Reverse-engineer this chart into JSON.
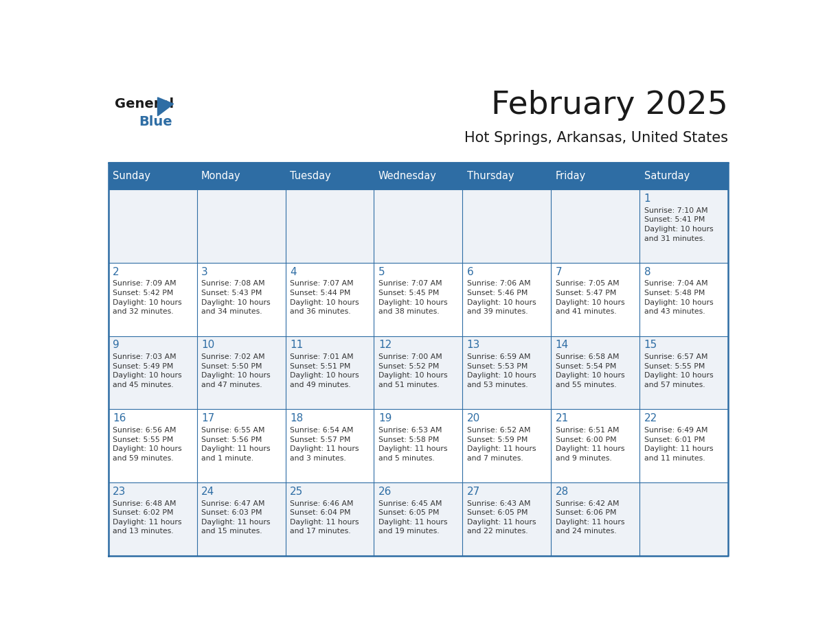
{
  "title": "February 2025",
  "subtitle": "Hot Springs, Arkansas, United States",
  "header_bg": "#2E6DA4",
  "header_text_color": "#FFFFFF",
  "day_number_color": "#2E6DA4",
  "info_text_color": "#333333",
  "border_color": "#2E6DA4",
  "days_of_week": [
    "Sunday",
    "Monday",
    "Tuesday",
    "Wednesday",
    "Thursday",
    "Friday",
    "Saturday"
  ],
  "calendar_data": [
    [
      null,
      null,
      null,
      null,
      null,
      null,
      {
        "day": 1,
        "sunrise": "7:10 AM",
        "sunset": "5:41 PM",
        "daylight_line1": "10 hours",
        "daylight_line2": "and 31 minutes."
      }
    ],
    [
      {
        "day": 2,
        "sunrise": "7:09 AM",
        "sunset": "5:42 PM",
        "daylight_line1": "10 hours",
        "daylight_line2": "and 32 minutes."
      },
      {
        "day": 3,
        "sunrise": "7:08 AM",
        "sunset": "5:43 PM",
        "daylight_line1": "10 hours",
        "daylight_line2": "and 34 minutes."
      },
      {
        "day": 4,
        "sunrise": "7:07 AM",
        "sunset": "5:44 PM",
        "daylight_line1": "10 hours",
        "daylight_line2": "and 36 minutes."
      },
      {
        "day": 5,
        "sunrise": "7:07 AM",
        "sunset": "5:45 PM",
        "daylight_line1": "10 hours",
        "daylight_line2": "and 38 minutes."
      },
      {
        "day": 6,
        "sunrise": "7:06 AM",
        "sunset": "5:46 PM",
        "daylight_line1": "10 hours",
        "daylight_line2": "and 39 minutes."
      },
      {
        "day": 7,
        "sunrise": "7:05 AM",
        "sunset": "5:47 PM",
        "daylight_line1": "10 hours",
        "daylight_line2": "and 41 minutes."
      },
      {
        "day": 8,
        "sunrise": "7:04 AM",
        "sunset": "5:48 PM",
        "daylight_line1": "10 hours",
        "daylight_line2": "and 43 minutes."
      }
    ],
    [
      {
        "day": 9,
        "sunrise": "7:03 AM",
        "sunset": "5:49 PM",
        "daylight_line1": "10 hours",
        "daylight_line2": "and 45 minutes."
      },
      {
        "day": 10,
        "sunrise": "7:02 AM",
        "sunset": "5:50 PM",
        "daylight_line1": "10 hours",
        "daylight_line2": "and 47 minutes."
      },
      {
        "day": 11,
        "sunrise": "7:01 AM",
        "sunset": "5:51 PM",
        "daylight_line1": "10 hours",
        "daylight_line2": "and 49 minutes."
      },
      {
        "day": 12,
        "sunrise": "7:00 AM",
        "sunset": "5:52 PM",
        "daylight_line1": "10 hours",
        "daylight_line2": "and 51 minutes."
      },
      {
        "day": 13,
        "sunrise": "6:59 AM",
        "sunset": "5:53 PM",
        "daylight_line1": "10 hours",
        "daylight_line2": "and 53 minutes."
      },
      {
        "day": 14,
        "sunrise": "6:58 AM",
        "sunset": "5:54 PM",
        "daylight_line1": "10 hours",
        "daylight_line2": "and 55 minutes."
      },
      {
        "day": 15,
        "sunrise": "6:57 AM",
        "sunset": "5:55 PM",
        "daylight_line1": "10 hours",
        "daylight_line2": "and 57 minutes."
      }
    ],
    [
      {
        "day": 16,
        "sunrise": "6:56 AM",
        "sunset": "5:55 PM",
        "daylight_line1": "10 hours",
        "daylight_line2": "and 59 minutes."
      },
      {
        "day": 17,
        "sunrise": "6:55 AM",
        "sunset": "5:56 PM",
        "daylight_line1": "11 hours",
        "daylight_line2": "and 1 minute."
      },
      {
        "day": 18,
        "sunrise": "6:54 AM",
        "sunset": "5:57 PM",
        "daylight_line1": "11 hours",
        "daylight_line2": "and 3 minutes."
      },
      {
        "day": 19,
        "sunrise": "6:53 AM",
        "sunset": "5:58 PM",
        "daylight_line1": "11 hours",
        "daylight_line2": "and 5 minutes."
      },
      {
        "day": 20,
        "sunrise": "6:52 AM",
        "sunset": "5:59 PM",
        "daylight_line1": "11 hours",
        "daylight_line2": "and 7 minutes."
      },
      {
        "day": 21,
        "sunrise": "6:51 AM",
        "sunset": "6:00 PM",
        "daylight_line1": "11 hours",
        "daylight_line2": "and 9 minutes."
      },
      {
        "day": 22,
        "sunrise": "6:49 AM",
        "sunset": "6:01 PM",
        "daylight_line1": "11 hours",
        "daylight_line2": "and 11 minutes."
      }
    ],
    [
      {
        "day": 23,
        "sunrise": "6:48 AM",
        "sunset": "6:02 PM",
        "daylight_line1": "11 hours",
        "daylight_line2": "and 13 minutes."
      },
      {
        "day": 24,
        "sunrise": "6:47 AM",
        "sunset": "6:03 PM",
        "daylight_line1": "11 hours",
        "daylight_line2": "and 15 minutes."
      },
      {
        "day": 25,
        "sunrise": "6:46 AM",
        "sunset": "6:04 PM",
        "daylight_line1": "11 hours",
        "daylight_line2": "and 17 minutes."
      },
      {
        "day": 26,
        "sunrise": "6:45 AM",
        "sunset": "6:05 PM",
        "daylight_line1": "11 hours",
        "daylight_line2": "and 19 minutes."
      },
      {
        "day": 27,
        "sunrise": "6:43 AM",
        "sunset": "6:05 PM",
        "daylight_line1": "11 hours",
        "daylight_line2": "and 22 minutes."
      },
      {
        "day": 28,
        "sunrise": "6:42 AM",
        "sunset": "6:06 PM",
        "daylight_line1": "11 hours",
        "daylight_line2": "and 24 minutes."
      },
      null
    ]
  ]
}
